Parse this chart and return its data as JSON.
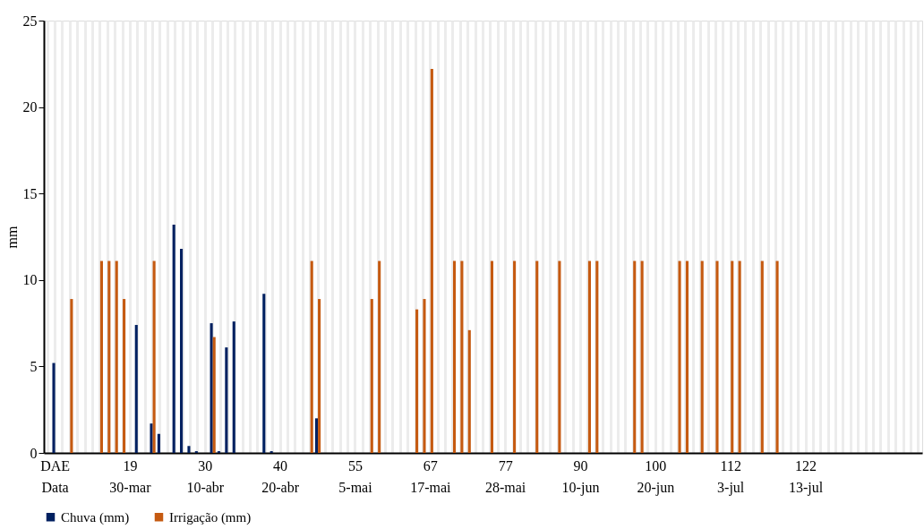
{
  "chart_data": {
    "type": "bar",
    "ylabel": "mm",
    "categories": [
      null,
      "DAE\nData",
      null,
      null,
      null,
      null,
      null,
      null,
      null,
      null,
      null,
      "19\n30-mar",
      null,
      null,
      null,
      null,
      null,
      null,
      null,
      null,
      null,
      "30\n10-abr",
      null,
      null,
      null,
      null,
      null,
      null,
      null,
      null,
      null,
      "40\n20-abr",
      null,
      null,
      null,
      null,
      null,
      null,
      null,
      null,
      null,
      "55\n5-mai",
      null,
      null,
      null,
      null,
      null,
      null,
      null,
      null,
      null,
      "67\n17-mai",
      null,
      null,
      null,
      null,
      null,
      null,
      null,
      null,
      null,
      "77\n28-mai",
      null,
      null,
      null,
      null,
      null,
      null,
      null,
      null,
      null,
      "90\n10-jun",
      null,
      null,
      null,
      null,
      null,
      null,
      null,
      null,
      null,
      "100\n20-jun",
      null,
      null,
      null,
      null,
      null,
      null,
      null,
      null,
      null,
      "112\n3-jul",
      null,
      null,
      null,
      null,
      null,
      null,
      null,
      null,
      null,
      "122\n13-jul",
      null,
      null,
      null,
      null,
      null,
      null,
      null,
      null,
      null,
      null,
      null,
      null,
      null,
      null,
      null
    ],
    "series": [
      {
        "name": "Chuva (mm)",
        "color": "#002060",
        "values": [
          null,
          5.2,
          null,
          null,
          null,
          null,
          null,
          null,
          null,
          null,
          null,
          null,
          7.4,
          null,
          1.7,
          1.1,
          null,
          13.2,
          11.8,
          0.4,
          0.1,
          null,
          7.5,
          0.1,
          6.1,
          7.6,
          null,
          null,
          null,
          9.2,
          0.1,
          null,
          null,
          null,
          null,
          null,
          2.0,
          null,
          null,
          null,
          null,
          null,
          null,
          null,
          null,
          null,
          null,
          null,
          null,
          null,
          null,
          null,
          null,
          null,
          null,
          null,
          null,
          null,
          null,
          null,
          null,
          null,
          null,
          null,
          null,
          null,
          null,
          null,
          null,
          null,
          null,
          null,
          null,
          null,
          null,
          null,
          null,
          null,
          null,
          null,
          null,
          null,
          null,
          null,
          null,
          null,
          null,
          null,
          null,
          null,
          null,
          null,
          null,
          null,
          null,
          null,
          null,
          null,
          null,
          null,
          null,
          null,
          null,
          null,
          null,
          null,
          null,
          null,
          null,
          null,
          null,
          null,
          null,
          null,
          null,
          null,
          null
        ]
      },
      {
        "name": "Irrigação (mm)",
        "color": "#c55a11",
        "values": [
          null,
          null,
          null,
          8.9,
          null,
          null,
          null,
          11.1,
          11.1,
          11.1,
          8.9,
          null,
          null,
          null,
          11.1,
          null,
          null,
          null,
          null,
          null,
          null,
          null,
          6.7,
          null,
          null,
          null,
          null,
          null,
          null,
          null,
          null,
          null,
          null,
          null,
          null,
          11.1,
          8.9,
          null,
          null,
          null,
          null,
          null,
          null,
          8.9,
          11.1,
          null,
          null,
          null,
          null,
          8.3,
          8.9,
          22.2,
          null,
          null,
          11.1,
          11.1,
          7.1,
          null,
          null,
          11.1,
          null,
          null,
          11.1,
          null,
          null,
          11.1,
          null,
          null,
          11.1,
          null,
          null,
          null,
          11.1,
          11.1,
          null,
          null,
          null,
          null,
          11.1,
          11.1,
          null,
          null,
          null,
          null,
          11.1,
          11.1,
          null,
          11.1,
          null,
          11.1,
          null,
          11.1,
          11.1,
          null,
          null,
          11.1,
          null,
          11.1,
          null,
          null,
          null,
          null,
          null,
          null,
          null,
          null,
          null,
          null,
          null,
          null,
          null,
          null,
          null,
          null,
          null,
          null,
          null
        ]
      }
    ],
    "ylim": [
      0,
      25
    ],
    "yticks": [
      0,
      5,
      10,
      15,
      20,
      25
    ],
    "grid": "x",
    "legend": "bottom"
  }
}
